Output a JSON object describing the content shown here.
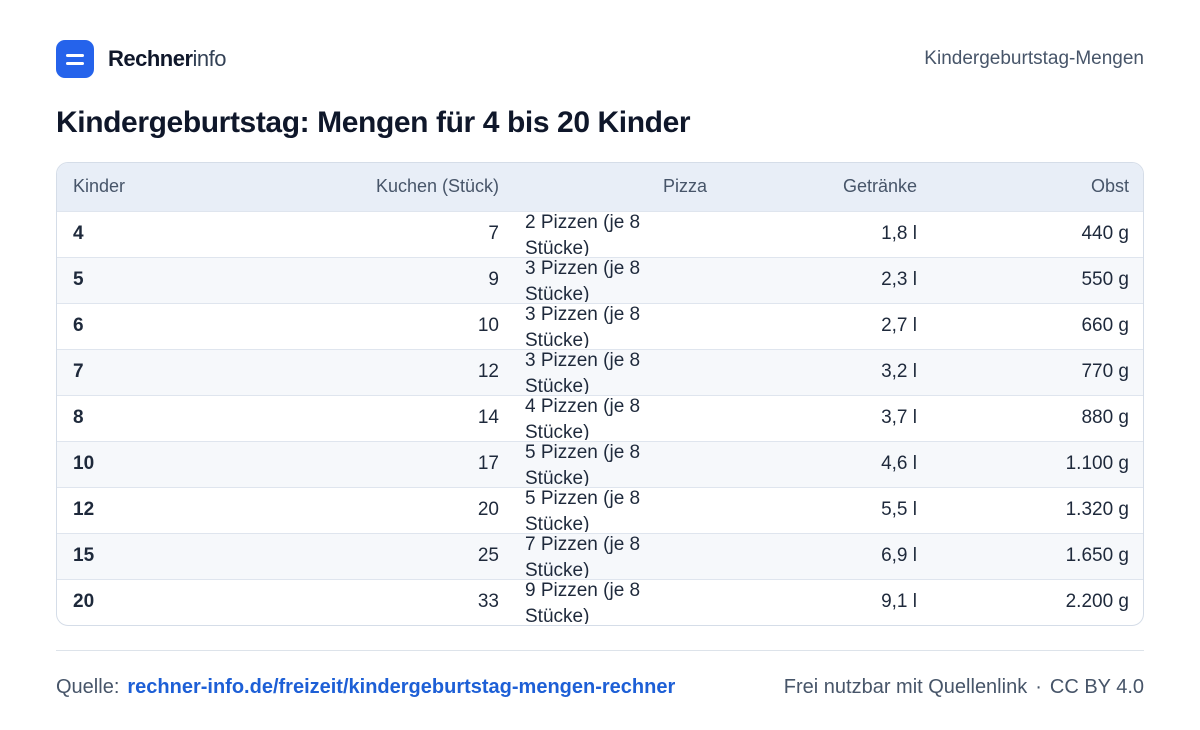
{
  "brand": {
    "name_strong": "Rechner",
    "name_light": "info"
  },
  "header": {
    "section": "Kindergeburtstag-Mengen"
  },
  "page": {
    "title": "Kindergeburtstag: Mengen für 4 bis 20 Kinder"
  },
  "table": {
    "columns": [
      "Kinder",
      "Kuchen (Stück)",
      "Pizza",
      "Getränke",
      "Obst"
    ],
    "rows": [
      [
        "4",
        "7",
        "2 Pizzen (je 8 Stücke)",
        "1,8 l",
        "440 g"
      ],
      [
        "5",
        "9",
        "3 Pizzen (je 8 Stücke)",
        "2,3 l",
        "550 g"
      ],
      [
        "6",
        "10",
        "3 Pizzen (je 8 Stücke)",
        "2,7 l",
        "660 g"
      ],
      [
        "7",
        "12",
        "3 Pizzen (je 8 Stücke)",
        "3,2 l",
        "770 g"
      ],
      [
        "8",
        "14",
        "4 Pizzen (je 8 Stücke)",
        "3,7 l",
        "880 g"
      ],
      [
        "10",
        "17",
        "5 Pizzen (je 8 Stücke)",
        "4,6 l",
        "1.100 g"
      ],
      [
        "12",
        "20",
        "5 Pizzen (je 8 Stücke)",
        "5,5 l",
        "1.320 g"
      ],
      [
        "15",
        "25",
        "7 Pizzen (je 8 Stücke)",
        "6,9 l",
        "1.650 g"
      ],
      [
        "20",
        "33",
        "9 Pizzen (je 8 Stücke)",
        "9,1 l",
        "2.200 g"
      ]
    ]
  },
  "footer": {
    "source_label": "Quelle:",
    "source_link": "rechner-info.de/freizeit/kindergeburtstag-mengen-rechner",
    "license_note": "Frei nutzbar mit Quellenlink",
    "separator": "·",
    "license": "CC BY 4.0"
  },
  "colors": {
    "accent": "#2563eb",
    "link": "#1d5fd6",
    "header_bg": "#e8eef7"
  }
}
